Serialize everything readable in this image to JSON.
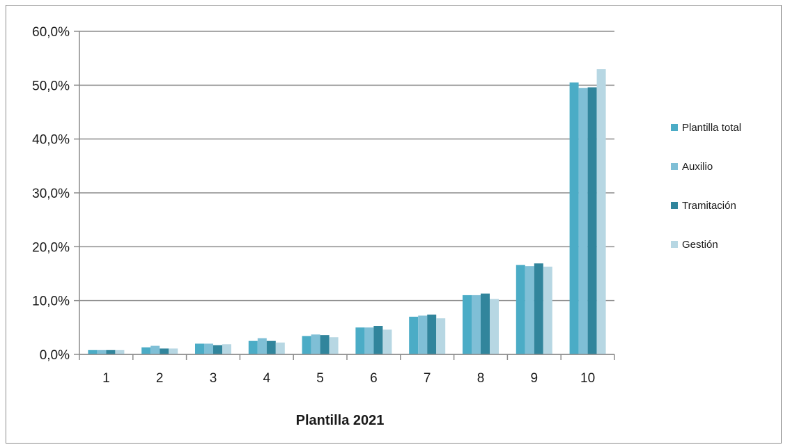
{
  "chart_data": {
    "type": "bar",
    "xlabel": "Plantilla 2021",
    "ylabel": "",
    "categories": [
      "1",
      "2",
      "3",
      "4",
      "5",
      "6",
      "7",
      "8",
      "9",
      "10"
    ],
    "ylim": [
      0,
      60
    ],
    "yticks": [
      "0,0%",
      "10,0%",
      "20,0%",
      "30,0%",
      "40,0%",
      "50,0%",
      "60,0%"
    ],
    "grid": true,
    "legend_position": "right",
    "series": [
      {
        "name": "Plantilla total",
        "color": "#4BACC6",
        "values": [
          0.8,
          1.3,
          2.0,
          2.5,
          3.4,
          5.0,
          7.0,
          11.0,
          16.6,
          50.5
        ]
      },
      {
        "name": "Auxilio",
        "color": "#7FBFD6",
        "values": [
          0.8,
          1.6,
          2.0,
          3.0,
          3.7,
          5.0,
          7.2,
          11.0,
          16.4,
          49.5
        ]
      },
      {
        "name": "Tramitación",
        "color": "#31859C",
        "values": [
          0.8,
          1.1,
          1.7,
          2.5,
          3.6,
          5.3,
          7.4,
          11.3,
          16.9,
          49.6
        ]
      },
      {
        "name": "Gestión",
        "color": "#B7D7E3",
        "values": [
          0.8,
          1.1,
          1.9,
          2.2,
          3.2,
          4.6,
          6.7,
          10.3,
          16.3,
          53.0
        ]
      }
    ]
  }
}
